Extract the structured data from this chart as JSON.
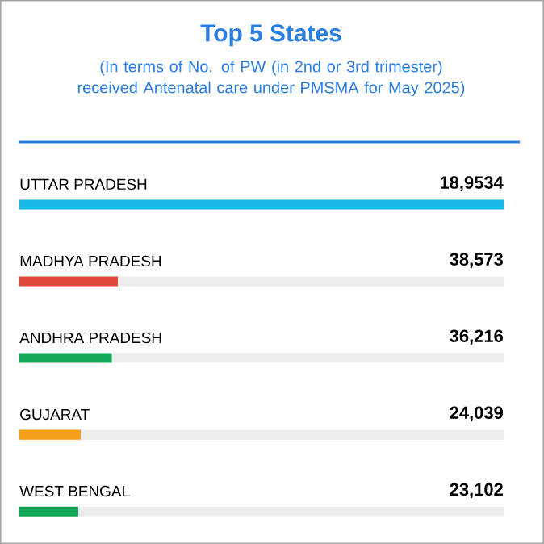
{
  "chart_data": {
    "type": "bar",
    "orientation": "horizontal",
    "title": "Top 5 States",
    "subtitle": "(In terms of No. of PW (in 2nd or 3rd trimester) received Antenatal care under PMSMA for May 2025)",
    "categories": [
      "UTTAR PRADESH",
      "MADHYA PRADESH",
      "ANDHRA PRADESH",
      "GUJARAT",
      "WEST BENGAL"
    ],
    "values": [
      189534,
      38573,
      36216,
      24039,
      23102
    ],
    "value_labels": [
      "18,9534",
      "38,573",
      "36,216",
      "24,039",
      "23,102"
    ],
    "colors": [
      "#1ab8e8",
      "#e04a3a",
      "#16a85a",
      "#f5a01a",
      "#16a85a"
    ]
  }
}
